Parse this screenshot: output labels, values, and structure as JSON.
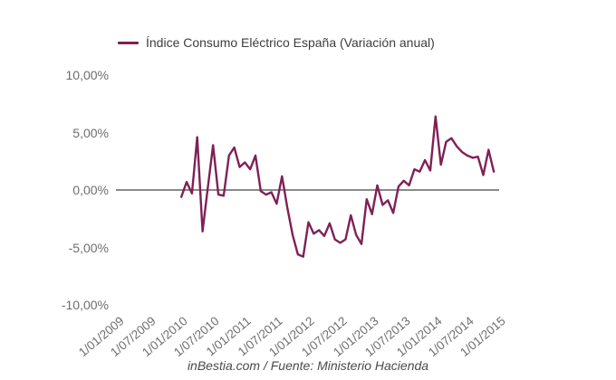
{
  "legend": {
    "label": "Índice Consumo Eléctrico España (Variación anual)"
  },
  "footer": {
    "credit": "inBestia.com / Fuente: Ministerio Hacienda"
  },
  "colors": {
    "series": "#7f2156",
    "zero_line": "#8a8a8a",
    "axis_text": "#6e6e6e",
    "legend_text": "#3d3d3d",
    "footer_text": "#4a4a4a",
    "background": "#ffffff"
  },
  "chart_data": {
    "type": "line",
    "title": "",
    "xlabel": "",
    "ylabel": "",
    "grid": "zero-line-only",
    "legend_position": "top",
    "ylim": [
      -10,
      10
    ],
    "y_ticks": [
      {
        "label": "10,00%",
        "value": 10
      },
      {
        "label": "5,00%",
        "value": 5
      },
      {
        "label": "0,00%",
        "value": 0
      },
      {
        "label": "-5,00%",
        "value": -5
      },
      {
        "label": "-10,00%",
        "value": -10
      }
    ],
    "x_tick_labels": [
      "1/01/2009",
      "1/07/2009",
      "1/01/2010",
      "1/07/2010",
      "1/01/2011",
      "1/07/2011",
      "1/01/2012",
      "1/07/2012",
      "1/01/2013",
      "1/07/2013",
      "1/01/2014",
      "1/07/2014",
      "1/01/2015"
    ],
    "x_axis_start_label": "1/01/2009",
    "x_tick_step_months": 6,
    "series": [
      {
        "name": "Índice Consumo Eléctrico España (Variación anual)",
        "color": "#7f2156",
        "unit": "%",
        "x_start": "1/01/2010",
        "x_step_months": 1,
        "first_point_month_offset": 12,
        "values": [
          -0.6,
          0.7,
          -0.3,
          4.6,
          -3.6,
          0.2,
          3.9,
          -0.4,
          -0.5,
          3.0,
          3.7,
          2.0,
          2.4,
          1.8,
          3.0,
          -0.1,
          -0.4,
          -0.2,
          -1.2,
          1.2,
          -1.5,
          -3.9,
          -5.6,
          -5.8,
          -2.8,
          -3.8,
          -3.5,
          -4.0,
          -2.9,
          -4.3,
          -4.6,
          -4.3,
          -2.2,
          -3.9,
          -4.7,
          -0.8,
          -2.1,
          0.4,
          -1.3,
          -0.9,
          -2.0,
          0.3,
          0.8,
          0.4,
          1.8,
          1.6,
          2.6,
          1.7,
          6.4,
          2.2,
          4.2,
          4.5,
          3.8,
          3.3,
          3.0,
          2.8,
          2.9,
          1.3,
          3.5,
          1.6
        ]
      }
    ]
  }
}
